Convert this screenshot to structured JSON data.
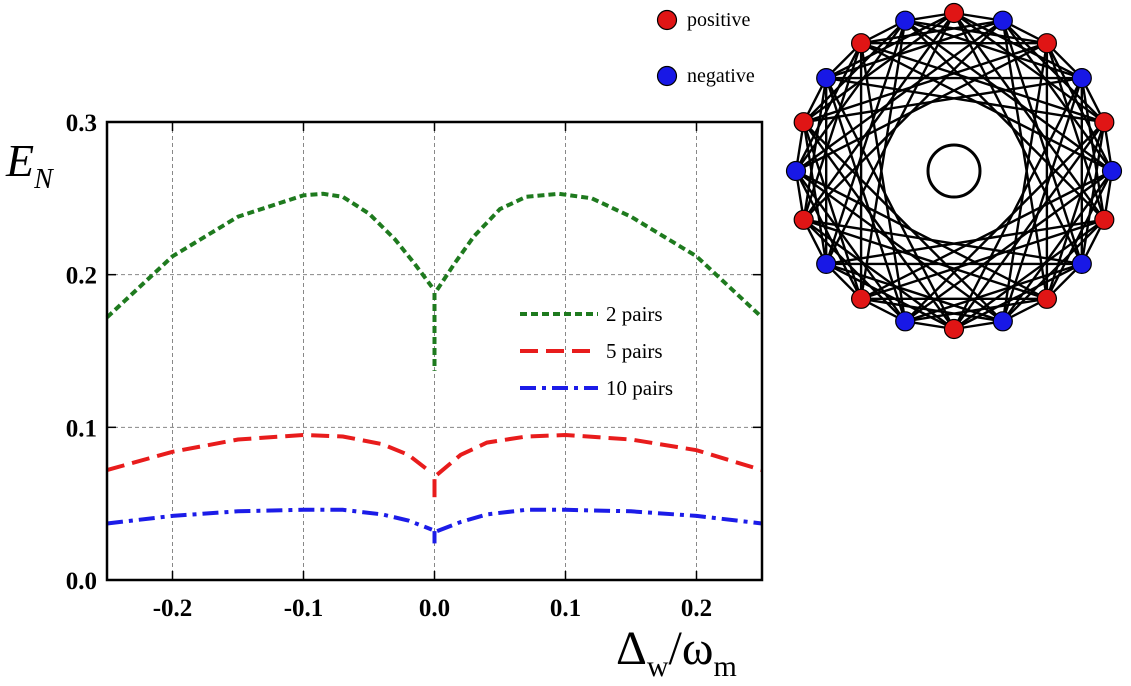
{
  "chart_data": [
    {
      "type": "line",
      "xlabel": "Δw/ωm",
      "xlabel_main": "Δ",
      "xlabel_sub1": "w",
      "xlabel_sep": "/ω",
      "xlabel_sub2": "m",
      "ylabel": "EN",
      "ylabel_main": "E",
      "ylabel_sub": "N",
      "xlim": [
        -0.25,
        0.25
      ],
      "ylim": [
        0.0,
        0.3
      ],
      "xticks": [
        -0.2,
        -0.1,
        0.0,
        0.1,
        0.2
      ],
      "xtick_labels": [
        "-0.2",
        "-0.1",
        "0.0",
        "0.1",
        "0.2"
      ],
      "yticks": [
        0.0,
        0.1,
        0.2,
        0.3
      ],
      "ytick_labels": [
        "0.0",
        "0.1",
        "0.2",
        "0.3"
      ],
      "grid": true,
      "legend_position": "center-right",
      "series": [
        {
          "name": "2 pairs",
          "color": "#1e7a1e",
          "style": "dotted",
          "segments": [
            [
              [
                -0.25,
                0.172
              ],
              [
                -0.2,
                0.212
              ],
              [
                -0.15,
                0.238
              ],
              [
                -0.1,
                0.252
              ],
              [
                -0.085,
                0.253
              ],
              [
                -0.07,
                0.251
              ],
              [
                -0.05,
                0.24
              ],
              [
                -0.03,
                0.223
              ],
              [
                -0.015,
                0.207
              ],
              [
                -0.002,
                0.192
              ]
            ],
            [
              [
                0.0,
                0.188
              ],
              [
                0.0,
                0.137
              ]
            ],
            [
              [
                0.002,
                0.19
              ],
              [
                0.015,
                0.207
              ],
              [
                0.03,
                0.225
              ],
              [
                0.05,
                0.243
              ],
              [
                0.07,
                0.251
              ],
              [
                0.095,
                0.253
              ],
              [
                0.12,
                0.25
              ],
              [
                0.15,
                0.238
              ],
              [
                0.2,
                0.212
              ],
              [
                0.25,
                0.172
              ]
            ]
          ]
        },
        {
          "name": "5 pairs",
          "color": "#e81c1c",
          "style": "dashed",
          "segments": [
            [
              [
                -0.25,
                0.072
              ],
              [
                -0.2,
                0.084
              ],
              [
                -0.15,
                0.092
              ],
              [
                -0.1,
                0.095
              ],
              [
                -0.07,
                0.094
              ],
              [
                -0.04,
                0.089
              ],
              [
                -0.02,
                0.082
              ],
              [
                -0.002,
                0.07
              ]
            ],
            [
              [
                0.0,
                0.066
              ],
              [
                0.0,
                0.052
              ]
            ],
            [
              [
                0.002,
                0.069
              ],
              [
                0.02,
                0.082
              ],
              [
                0.04,
                0.09
              ],
              [
                0.07,
                0.094
              ],
              [
                0.1,
                0.095
              ],
              [
                0.15,
                0.092
              ],
              [
                0.2,
                0.085
              ],
              [
                0.25,
                0.072
              ]
            ]
          ]
        },
        {
          "name": "10 pairs",
          "color": "#1c1ce8",
          "style": "dashdot",
          "segments": [
            [
              [
                -0.25,
                0.037
              ],
              [
                -0.2,
                0.042
              ],
              [
                -0.15,
                0.045
              ],
              [
                -0.1,
                0.046
              ],
              [
                -0.07,
                0.046
              ],
              [
                -0.04,
                0.043
              ],
              [
                -0.02,
                0.039
              ],
              [
                -0.002,
                0.033
              ]
            ],
            [
              [
                0.0,
                0.032
              ],
              [
                0.0,
                0.024
              ]
            ],
            [
              [
                0.002,
                0.032
              ],
              [
                0.02,
                0.038
              ],
              [
                0.04,
                0.043
              ],
              [
                0.07,
                0.046
              ],
              [
                0.1,
                0.046
              ],
              [
                0.15,
                0.045
              ],
              [
                0.2,
                0.042
              ],
              [
                0.25,
                0.037
              ]
            ]
          ]
        }
      ]
    },
    {
      "type": "network",
      "legend": [
        {
          "label": "positive",
          "color": "#e01515"
        },
        {
          "label": "negative",
          "color": "#1818e6"
        }
      ],
      "node_count": 20,
      "node_colors": [
        "red",
        "blue",
        "red",
        "blue",
        "red",
        "blue",
        "red",
        "blue",
        "red",
        "blue",
        "red",
        "blue",
        "red",
        "blue",
        "red",
        "blue",
        "red",
        "blue",
        "red",
        "blue"
      ],
      "edge_color": "#000000"
    }
  ]
}
